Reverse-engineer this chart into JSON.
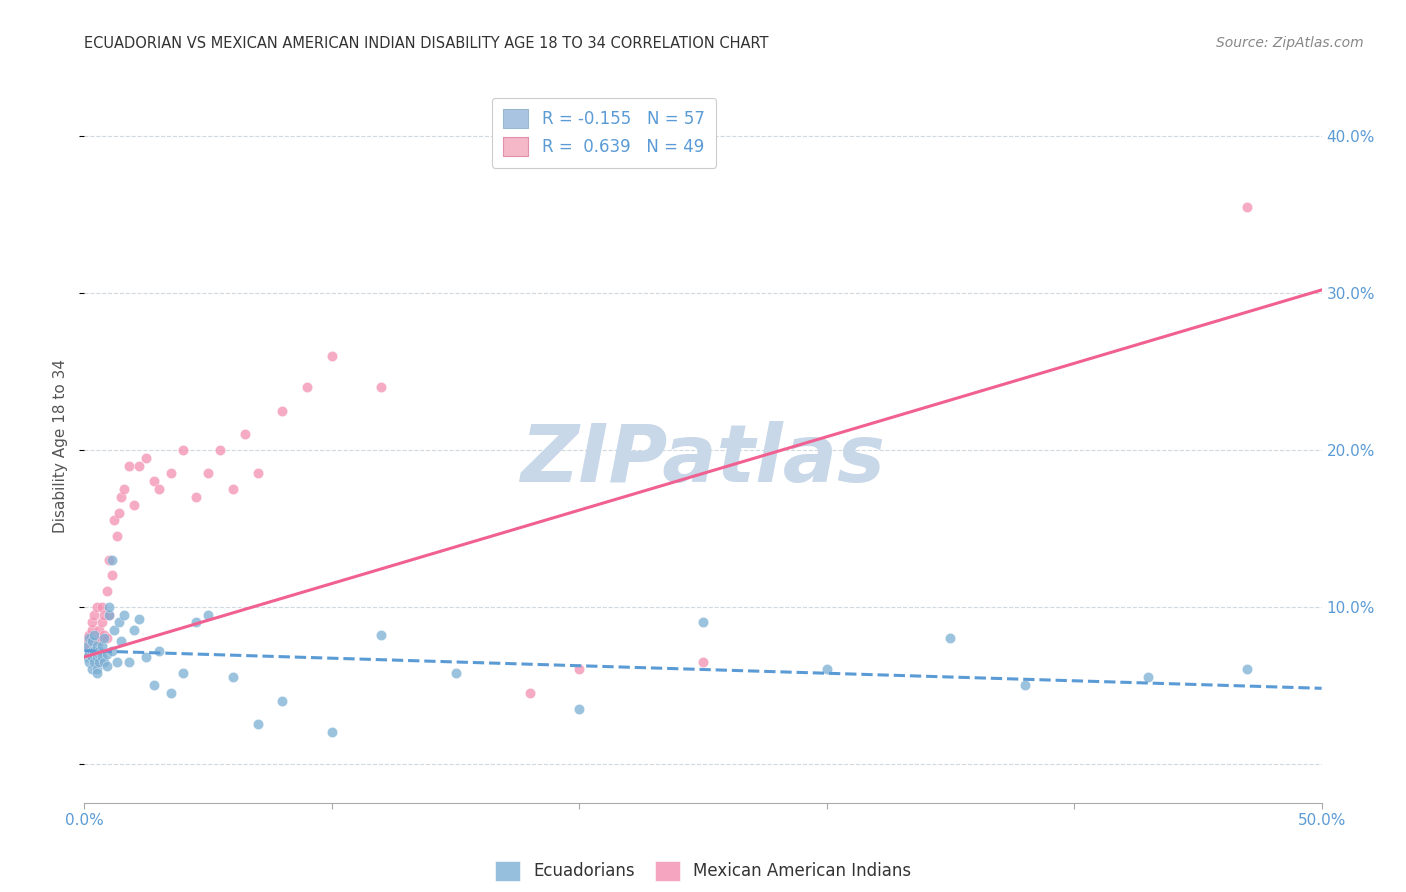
{
  "title": "ECUADORIAN VS MEXICAN AMERICAN INDIAN DISABILITY AGE 18 TO 34 CORRELATION CHART",
  "source": "Source: ZipAtlas.com",
  "ylabel": "Disability Age 18 to 34",
  "xlim": [
    0.0,
    0.5
  ],
  "ylim": [
    -0.025,
    0.43
  ],
  "xticks": [
    0.0,
    0.1,
    0.2,
    0.3,
    0.4,
    0.5
  ],
  "xticklabels": [
    "0.0%",
    "",
    "",
    "",
    "",
    "50.0%"
  ],
  "yticks_right": [
    0.0,
    0.1,
    0.2,
    0.3,
    0.4
  ],
  "ytick_labels_right": [
    "",
    "10.0%",
    "20.0%",
    "30.0%",
    "40.0%"
  ],
  "legend_entries": [
    {
      "label": "R = -0.155   N = 57",
      "color": "#a8c4e0"
    },
    {
      "label": "R =  0.639   N = 49",
      "color": "#f4b8c8"
    }
  ],
  "ecuadorians_color": "#7bafd4",
  "mexican_color": "#f48fb1",
  "trendline_ecuador_color": "#5b9bd5",
  "trendline_mexican_color": "#f06090",
  "watermark": "ZIPatlas",
  "watermark_color": "#c8d8e8",
  "background_color": "#ffffff",
  "grid_color": "#d0d8e0",
  "ecu_trend_x0": 0.0,
  "ecu_trend_y0": 0.072,
  "ecu_trend_x1": 0.5,
  "ecu_trend_y1": 0.048,
  "mex_trend_x0": 0.0,
  "mex_trend_y0": 0.068,
  "mex_trend_x1": 0.5,
  "mex_trend_y1": 0.302,
  "ecuadorians_x": [
    0.001,
    0.001,
    0.002,
    0.002,
    0.002,
    0.003,
    0.003,
    0.003,
    0.003,
    0.004,
    0.004,
    0.004,
    0.005,
    0.005,
    0.005,
    0.005,
    0.006,
    0.006,
    0.006,
    0.007,
    0.007,
    0.008,
    0.008,
    0.009,
    0.009,
    0.01,
    0.01,
    0.011,
    0.011,
    0.012,
    0.013,
    0.014,
    0.015,
    0.016,
    0.018,
    0.02,
    0.022,
    0.025,
    0.028,
    0.03,
    0.035,
    0.04,
    0.045,
    0.05,
    0.06,
    0.07,
    0.08,
    0.1,
    0.12,
    0.15,
    0.2,
    0.25,
    0.3,
    0.35,
    0.38,
    0.43,
    0.47
  ],
  "ecuadorians_y": [
    0.075,
    0.068,
    0.08,
    0.07,
    0.065,
    0.078,
    0.072,
    0.068,
    0.06,
    0.082,
    0.072,
    0.065,
    0.075,
    0.068,
    0.06,
    0.058,
    0.07,
    0.065,
    0.072,
    0.068,
    0.075,
    0.08,
    0.065,
    0.07,
    0.062,
    0.095,
    0.1,
    0.072,
    0.13,
    0.085,
    0.065,
    0.09,
    0.078,
    0.095,
    0.065,
    0.085,
    0.092,
    0.068,
    0.05,
    0.072,
    0.045,
    0.058,
    0.09,
    0.095,
    0.055,
    0.025,
    0.04,
    0.02,
    0.082,
    0.058,
    0.035,
    0.09,
    0.06,
    0.08,
    0.05,
    0.055,
    0.06
  ],
  "mexican_x": [
    0.001,
    0.002,
    0.002,
    0.003,
    0.003,
    0.003,
    0.004,
    0.004,
    0.005,
    0.005,
    0.005,
    0.006,
    0.006,
    0.007,
    0.007,
    0.008,
    0.008,
    0.009,
    0.009,
    0.01,
    0.01,
    0.011,
    0.012,
    0.013,
    0.014,
    0.015,
    0.016,
    0.018,
    0.02,
    0.022,
    0.025,
    0.028,
    0.03,
    0.035,
    0.04,
    0.045,
    0.05,
    0.055,
    0.06,
    0.065,
    0.07,
    0.08,
    0.09,
    0.1,
    0.12,
    0.18,
    0.2,
    0.25,
    0.47
  ],
  "mexican_y": [
    0.08,
    0.075,
    0.082,
    0.078,
    0.085,
    0.09,
    0.072,
    0.095,
    0.08,
    0.1,
    0.065,
    0.085,
    0.078,
    0.09,
    0.1,
    0.082,
    0.095,
    0.08,
    0.11,
    0.095,
    0.13,
    0.12,
    0.155,
    0.145,
    0.16,
    0.17,
    0.175,
    0.19,
    0.165,
    0.19,
    0.195,
    0.18,
    0.175,
    0.185,
    0.2,
    0.17,
    0.185,
    0.2,
    0.175,
    0.21,
    0.185,
    0.225,
    0.24,
    0.26,
    0.24,
    0.045,
    0.06,
    0.065,
    0.355
  ]
}
